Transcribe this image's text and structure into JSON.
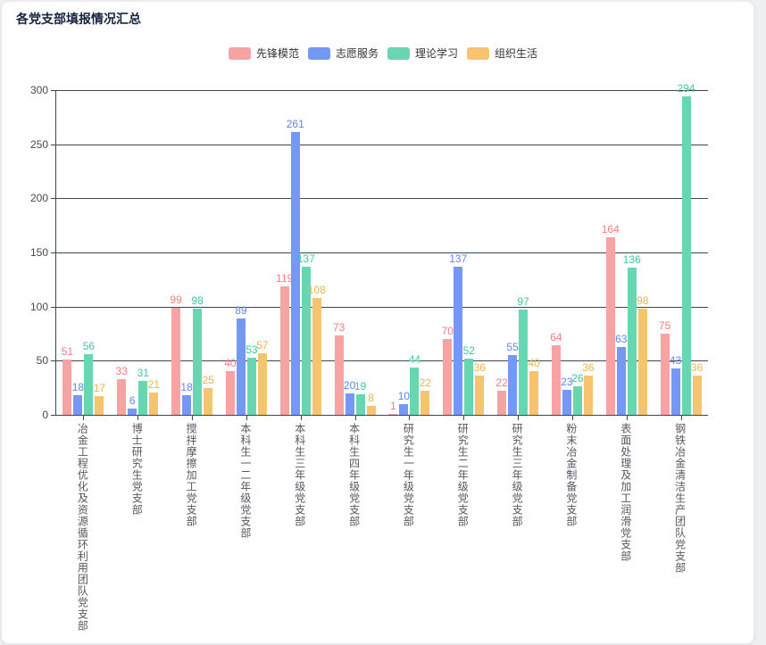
{
  "page": {
    "title": "各党支部填报情况汇总"
  },
  "theme": {
    "page_bg": "#edeff2",
    "card_bg": "#ffffff",
    "card_border": "#e9ebef",
    "title_color": "#17233d",
    "axis_color": "#3d4656",
    "tick_label_color": "#45494f",
    "category_label_color": "#55585f",
    "legend_text_color": "#333333"
  },
  "chart_data": {
    "type": "bar",
    "title": "各党支部填报情况汇总",
    "xlabel": "",
    "ylabel": "",
    "ylim": [
      0,
      300
    ],
    "yticks": [
      0,
      50,
      100,
      150,
      200,
      250,
      300
    ],
    "grid": true,
    "legend_position": "top-center",
    "categories": [
      "冶金工程优化及资源循环利用团队党支部",
      "博士研究生党支部",
      "搅拌摩擦加工党支部",
      "本科生一二年级党支部",
      "本科生三年级党支部",
      "本科生四年级党支部",
      "研究生一年级党支部",
      "研究生二年级党支部",
      "研究生三年级党支部",
      "粉末冶金制备党支部",
      "表面处理及加工润滑党支部",
      "钢铁冶金清洁生产团队党支部"
    ],
    "series": [
      {
        "name": "先锋模范",
        "color": "#F8A3A3",
        "label_color": "#F47E7E",
        "values": [
          51,
          33,
          99,
          40,
          119,
          73,
          1,
          70,
          22,
          64,
          164,
          75
        ]
      },
      {
        "name": "志愿服务",
        "color": "#7598F6",
        "label_color": "#5E87F2",
        "values": [
          18,
          6,
          18,
          89,
          261,
          20,
          10,
          137,
          55,
          23,
          63,
          43
        ]
      },
      {
        "name": "理论学习",
        "color": "#68D6B1",
        "label_color": "#41C79E",
        "values": [
          56,
          31,
          98,
          53,
          137,
          19,
          44,
          52,
          97,
          26,
          136,
          294
        ]
      },
      {
        "name": "组织生活",
        "color": "#F6C36F",
        "label_color": "#F0B254",
        "values": [
          17,
          21,
          25,
          57,
          108,
          8,
          22,
          36,
          40,
          36,
          98,
          36
        ]
      }
    ]
  }
}
